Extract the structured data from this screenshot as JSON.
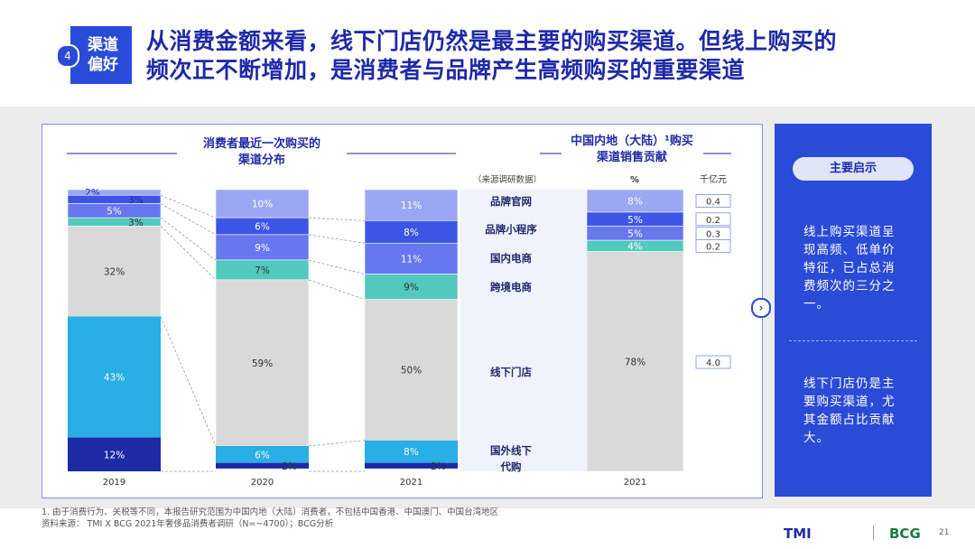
{
  "header": {
    "tag_number": "4",
    "tag_label": "渠道偏好",
    "headline_line1": "从消费金额来看，线下门店仍然是最主要的购买渠道。但线上购买的",
    "headline_line2": "频次正不断增加，是消费者与品牌产生高频购买的重要渠道"
  },
  "left_title_line1": "消费者最近一次购买的",
  "left_title_line2": "渠道分布",
  "right_title_line1": "中国内地（大陆）¹购买",
  "right_title_line2": "渠道销售贡献",
  "source_note": "（来源调研数据）",
  "pct_header": "%",
  "value_header": "千亿元",
  "channels": [
    "品牌官网",
    "品牌小程序",
    "国内电商",
    "跨境电商",
    "线下门店",
    "国外线下代购"
  ],
  "chart_data": [
    {
      "type": "bar",
      "stacked": true,
      "title": "消费者最近一次购买的渠道分布",
      "categories": [
        "2019",
        "2020",
        "2021"
      ],
      "series": [
        {
          "name": "品牌官网",
          "values": [
            2,
            10,
            11
          ]
        },
        {
          "name": "品牌小程序",
          "values": [
            3,
            6,
            8
          ]
        },
        {
          "name": "国内电商",
          "values": [
            5,
            9,
            11
          ]
        },
        {
          "name": "跨境电商",
          "values": [
            3,
            7,
            9
          ]
        },
        {
          "name": "线下门店",
          "values": [
            32,
            59,
            50
          ]
        },
        {
          "name": "国外线下代购",
          "values": [
            55,
            8,
            10
          ]
        }
      ],
      "segment_labels": [
        [
          "2%",
          "3%",
          "5%",
          "3%",
          "32%",
          "43%",
          "12%"
        ],
        [
          "10%",
          "6%",
          "9%",
          "7%",
          "59%",
          "6%",
          "2%"
        ],
        [
          "11%",
          "8%",
          "11%",
          "9%",
          "50%",
          "8%",
          "2%"
        ]
      ],
      "ylim": [
        0,
        100
      ]
    },
    {
      "type": "bar",
      "stacked": true,
      "title": "中国内地（大陆）¹购买渠道销售贡献",
      "categories": [
        "2021"
      ],
      "series": [
        {
          "name": "品牌官网",
          "values": [
            8
          ],
          "amount": "0.4"
        },
        {
          "name": "品牌小程序",
          "values": [
            5
          ],
          "amount": "0.2"
        },
        {
          "name": "国内电商",
          "values": [
            5
          ],
          "amount": "0.3"
        },
        {
          "name": "跨境电商",
          "values": [
            4
          ],
          "amount": "0.2"
        },
        {
          "name": "线下门店",
          "values": [
            78
          ],
          "amount": "4.0"
        }
      ],
      "ylim": [
        0,
        100
      ]
    }
  ],
  "sidebar": {
    "pill": "主要启示",
    "insight1": "线上购买渠道呈现高频、低单价特征，已占总消费频次的三分之一。",
    "insight2": "线下门店仍是主要购买渠道，尤其金额占比贡献大。"
  },
  "footnote_line1": "1. 由于消费行为、关税等不同，本报告研究范围为中国内地（大陆）消费者，不包括中国香港、中国澳门、中国台湾地区",
  "footnote_line2": "资料来源： TMI X BCG 2021年奢侈品消费者调研（N=~4700）；BCG分析",
  "logo_tmi": "TMI",
  "logo_bcg": "BCG",
  "page_number": "21",
  "colors": {
    "site": "#9aa7f2",
    "miniapp": "#3d55e6",
    "ecom": "#6777f0",
    "crossborder": "#52c9bd",
    "offline": "#d9d9d9",
    "abroad_light": "#29aee5",
    "abroad_dark": "#1d2aa6",
    "brand": "#2a4bd7"
  }
}
